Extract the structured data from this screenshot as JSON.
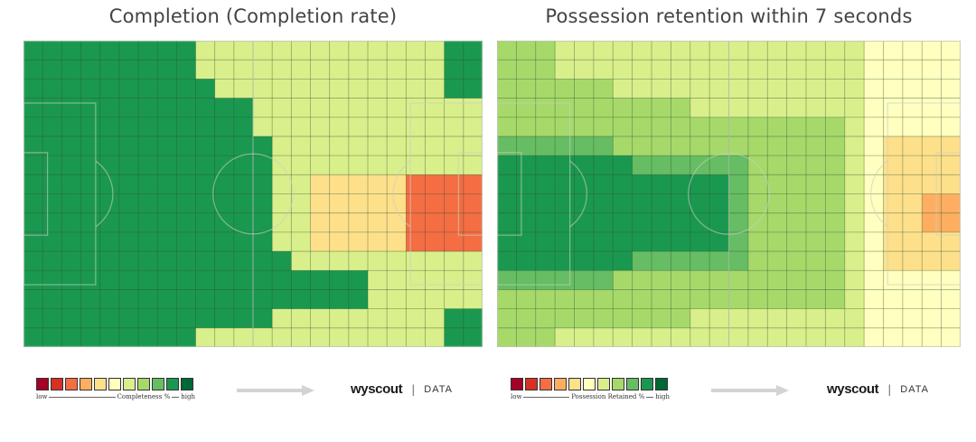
{
  "chart_data": [
    {
      "type": "heatmap",
      "title": "Completion (Completion rate)",
      "legend": {
        "low_label": "low",
        "metric_label": "Completeness %",
        "high_label": "high",
        "colors": [
          "#a50026",
          "#d73027",
          "#f46d43",
          "#fdae61",
          "#fee08b",
          "#ffffbf",
          "#d9ef8b",
          "#a6d96a",
          "#66bd63",
          "#1a9850",
          "#006837"
        ]
      },
      "grid": {
        "cols": 24,
        "rows": 16
      },
      "value_scale": "0 = low, 10 = high (relative, read from colour)",
      "values": [
        "999999999666666666666699",
        "999999999666666666666699",
        "999999999966666666666699",
        "999999999999666666666666",
        "999999999999666666666666",
        "999999999999966666666666",
        "999999999999966666666666",
        "999999999999966444442222",
        "999999999999966444442222",
        "999999999999966444442222",
        "999999999999966444442222",
        "999999999999996666666666",
        "999999999999999999666666",
        "999999999999999999666666",
        "999999999999966666666699",
        "999999999666666666666699"
      ]
    },
    {
      "type": "heatmap",
      "title": "Possession retention within 7 seconds",
      "legend": {
        "low_label": "low",
        "metric_label": "Possession Retained %",
        "high_label": "high",
        "colors": [
          "#a50026",
          "#d73027",
          "#f46d43",
          "#fdae61",
          "#fee08b",
          "#ffffbf",
          "#d9ef8b",
          "#a6d96a",
          "#66bd63",
          "#1a9850",
          "#006837"
        ]
      },
      "grid": {
        "cols": 24,
        "rows": 16
      },
      "value_scale": "0 = low, 10 = high (relative, read from colour)",
      "values": [
        "777666666666666666655555",
        "777666666666666666655555",
        "777777666666666666655555",
        "777777777766666666655555",
        "777777777777777777655555",
        "888888777777777777654444",
        "999999988888877777654444",
        "999999999999877777654444",
        "999999999999877777654433",
        "999999999999877777654433",
        "999999999999877777654444",
        "999999988888877777654444",
        "888888777777777777655555",
        "777777777777777777655555",
        "777777777766666666655555",
        "777666666666666666655555"
      ]
    }
  ],
  "brand": {
    "name": "wyscout",
    "separator": "|",
    "tag": "DATA"
  }
}
